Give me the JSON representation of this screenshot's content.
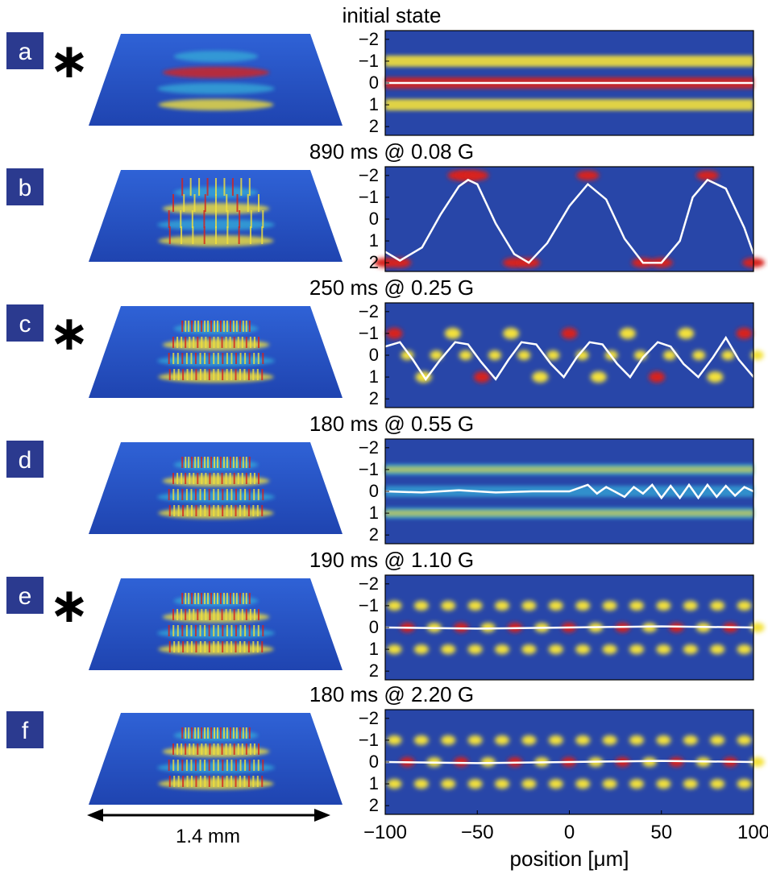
{
  "colors": {
    "letter_box": "#2b3a8f",
    "heatmap_low": "#2846a8",
    "heatmap_mid": "#34a8d8",
    "heatmap_high": "#f4e23a",
    "heatmap_peak": "#d8201a",
    "trace": "#ffffff",
    "surface_base": "#2a55c8"
  },
  "scale_bar": {
    "label": "1.4 mm"
  },
  "chart_data": [
    {
      "type": "heatmap",
      "panel": "a",
      "starred": true,
      "title": "initial state",
      "y_ticks": [
        "−2",
        "−1",
        "0",
        "1",
        "2"
      ],
      "ylim": [
        -2.4,
        2.4
      ],
      "xlim": [
        -100,
        100
      ],
      "pattern": "stripes",
      "trace": {
        "x": [
          -100,
          -50,
          0,
          50,
          100
        ],
        "y": [
          0,
          0,
          0,
          0,
          0
        ]
      }
    },
    {
      "type": "heatmap",
      "panel": "b",
      "starred": false,
      "title": "890 ms @ 0.08 G",
      "y_ticks": [
        "−2",
        "−1",
        "0",
        "1",
        "2"
      ],
      "ylim": [
        -2.4,
        2.4
      ],
      "xlim": [
        -100,
        100
      ],
      "pattern": "zigzag",
      "trace": {
        "x": [
          -100,
          -92,
          -80,
          -70,
          -60,
          -55,
          -50,
          -40,
          -30,
          -22,
          -12,
          0,
          10,
          20,
          30,
          40,
          50,
          60,
          67,
          75,
          85,
          95,
          100
        ],
        "y": [
          1.5,
          1.9,
          1.3,
          -0.2,
          -1.5,
          -1.8,
          -1.6,
          0.2,
          1.6,
          2.0,
          1.1,
          -0.6,
          -1.6,
          -0.9,
          0.9,
          2.0,
          2.0,
          1.0,
          -1.0,
          -1.8,
          -1.4,
          0.4,
          1.6
        ]
      }
    },
    {
      "type": "heatmap",
      "panel": "c",
      "starred": true,
      "title": "250 ms @ 0.25 G",
      "y_ticks": [
        "−2",
        "−1",
        "0",
        "1",
        "2"
      ],
      "ylim": [
        -2.4,
        2.4
      ],
      "xlim": [
        -100,
        100
      ],
      "pattern": "checker",
      "trace": {
        "x": [
          -100,
          -92,
          -85,
          -78,
          -70,
          -62,
          -55,
          -48,
          -40,
          -33,
          -26,
          -18,
          -10,
          -3,
          4,
          11,
          18,
          26,
          33,
          40,
          48,
          55,
          62,
          70,
          78,
          85,
          92,
          100
        ],
        "y": [
          -0.4,
          -0.6,
          0.2,
          1.1,
          0.2,
          -0.6,
          -0.5,
          0.3,
          1.1,
          0.2,
          -0.6,
          -0.5,
          0.4,
          1.0,
          0.1,
          -0.6,
          -0.5,
          0.4,
          1.0,
          0.1,
          -0.6,
          -0.4,
          0.4,
          1.0,
          0.1,
          -0.8,
          0.2,
          1.0
        ]
      }
    },
    {
      "type": "heatmap",
      "panel": "d",
      "starred": false,
      "title": "180 ms @ 0.55 G",
      "y_ticks": [
        "−2",
        "−1",
        "0",
        "1",
        "2"
      ],
      "ylim": [
        -2.4,
        2.4
      ],
      "xlim": [
        -100,
        100
      ],
      "pattern": "stripes_weak",
      "trace": {
        "x": [
          -100,
          -80,
          -60,
          -40,
          -20,
          0,
          10,
          15,
          20,
          30,
          35,
          40,
          45,
          50,
          55,
          60,
          65,
          70,
          75,
          80,
          85,
          90,
          95,
          100
        ],
        "y": [
          0,
          0.05,
          -0.05,
          0.05,
          0,
          0,
          -0.3,
          0.1,
          -0.2,
          0.25,
          -0.2,
          0.1,
          -0.3,
          0.3,
          -0.25,
          0.3,
          -0.3,
          0.3,
          -0.3,
          0.25,
          -0.25,
          0.2,
          -0.2,
          0
        ]
      }
    },
    {
      "type": "heatmap",
      "panel": "e",
      "starred": true,
      "title": "190 ms @ 1.10 G",
      "y_ticks": [
        "−2",
        "−1",
        "0",
        "1",
        "2"
      ],
      "ylim": [
        -2.4,
        2.4
      ],
      "xlim": [
        -100,
        100
      ],
      "pattern": "dense_checker",
      "trace": {
        "x": [
          -100,
          -50,
          0,
          50,
          100
        ],
        "y": [
          0,
          0.05,
          0,
          -0.05,
          0
        ]
      }
    },
    {
      "type": "heatmap",
      "panel": "f",
      "starred": false,
      "title": "180 ms @ 2.20 G",
      "y_ticks": [
        "−2",
        "−1",
        "0",
        "1",
        "2"
      ],
      "ylim": [
        -2.4,
        2.4
      ],
      "xlim": [
        -100,
        100
      ],
      "x_ticks": [
        "−100",
        "−50",
        "0",
        "50",
        "100"
      ],
      "xlabel": "position [μm]",
      "pattern": "dense_checker",
      "trace": {
        "x": [
          -100,
          -50,
          0,
          50,
          100
        ],
        "y": [
          0,
          0.05,
          0,
          -0.05,
          0
        ]
      }
    }
  ]
}
